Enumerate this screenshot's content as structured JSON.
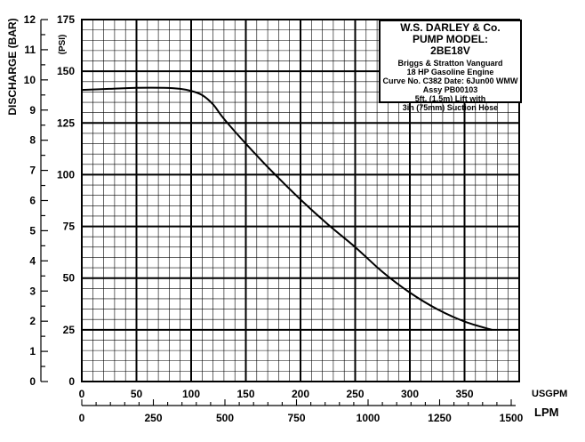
{
  "chart_data": {
    "type": "line",
    "title": "",
    "info_box": {
      "company": "W.S. DARLEY & Co.",
      "model_label": "PUMP MODEL:",
      "model": "2BE18V",
      "lines": [
        "Briggs & Stratton Vanguard",
        "18 HP Gasoline Engine",
        "Curve No. C382 Date: 6Jun00 WMW",
        "Assy PB00103",
        "5ft. (1.5m) Lift with",
        "3in (75mm) Suction Hose"
      ]
    },
    "y_left_label": "DISCHARGE (BAR)",
    "y_left_ticks": [
      "0",
      "1",
      "2",
      "3",
      "4",
      "5",
      "6",
      "7",
      "8",
      "9",
      "10",
      "11",
      "12"
    ],
    "y_left_range": [
      0,
      12
    ],
    "y_psi_label": "(PSI)",
    "y_psi_ticks": [
      "25",
      "50",
      "75",
      "100",
      "125",
      "150",
      "175"
    ],
    "y_psi_range": [
      0,
      175
    ],
    "x_usgpm_label": "USGPM",
    "x_usgpm_ticks": [
      "0",
      "50",
      "100",
      "150",
      "200",
      "250",
      "300",
      "350"
    ],
    "x_usgpm_range": [
      0,
      400
    ],
    "x_lpm_label": "LPM",
    "x_lpm_ticks": [
      "0",
      "250",
      "500",
      "750",
      "1000",
      "1250",
      "1500"
    ],
    "x_lpm_range": [
      0,
      1500
    ],
    "grid": true,
    "series": [
      {
        "x_usgpm": [
          0,
          25,
          50,
          75,
          90,
          100,
          110,
          120,
          130,
          150,
          175,
          200,
          225,
          250,
          275,
          300,
          325,
          350,
          375
        ],
        "y_psi": [
          141,
          141.5,
          142,
          142,
          141.5,
          140.5,
          138.5,
          134,
          127,
          115,
          101,
          88,
          76,
          65,
          53,
          43,
          35,
          29,
          25
        ]
      }
    ]
  }
}
